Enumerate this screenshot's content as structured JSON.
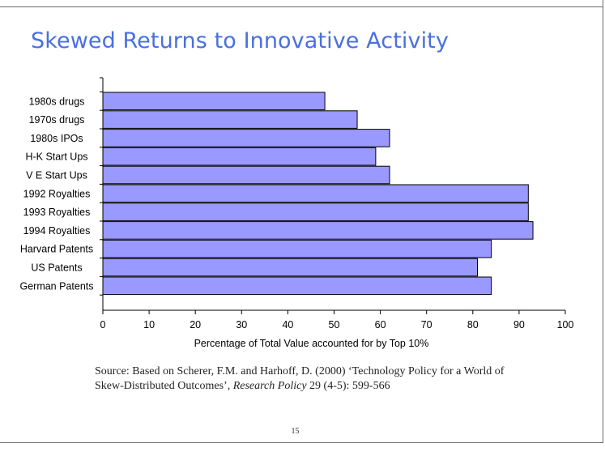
{
  "slide": {
    "title": "Skewed Returns to Innovative Activity",
    "source": {
      "prefix": "Source: Based on Scherer, F.M. and Harhoff, D. (2000) ‘Technology Policy for a World of Skew-Distributed Outcomes’, ",
      "journal": "Research Policy",
      "suffix": " 29 (4-5): 599-566"
    },
    "page_number": "15"
  },
  "chart_data": {
    "type": "bar",
    "orientation": "horizontal",
    "categories": [
      "1980s drugs",
      "1970s drugs",
      "1980s IPOs",
      "H-K Start Ups",
      "V E Start Ups",
      "1992 Royalties",
      "1993 Royalties",
      "1994 Royalties",
      "Harvard Patents",
      "US Patents",
      "German Patents"
    ],
    "values": [
      48,
      55,
      62,
      59,
      62,
      92,
      92,
      93,
      84,
      81,
      84
    ],
    "xlabel": "Percentage of Total Value accounted for by Top 10%",
    "ylabel": "",
    "xlim": [
      0,
      100
    ],
    "xticks": [
      0,
      10,
      20,
      30,
      40,
      50,
      60,
      70,
      80,
      90,
      100
    ],
    "bar_color": "#9999ff",
    "grid": false,
    "legend": "none"
  }
}
